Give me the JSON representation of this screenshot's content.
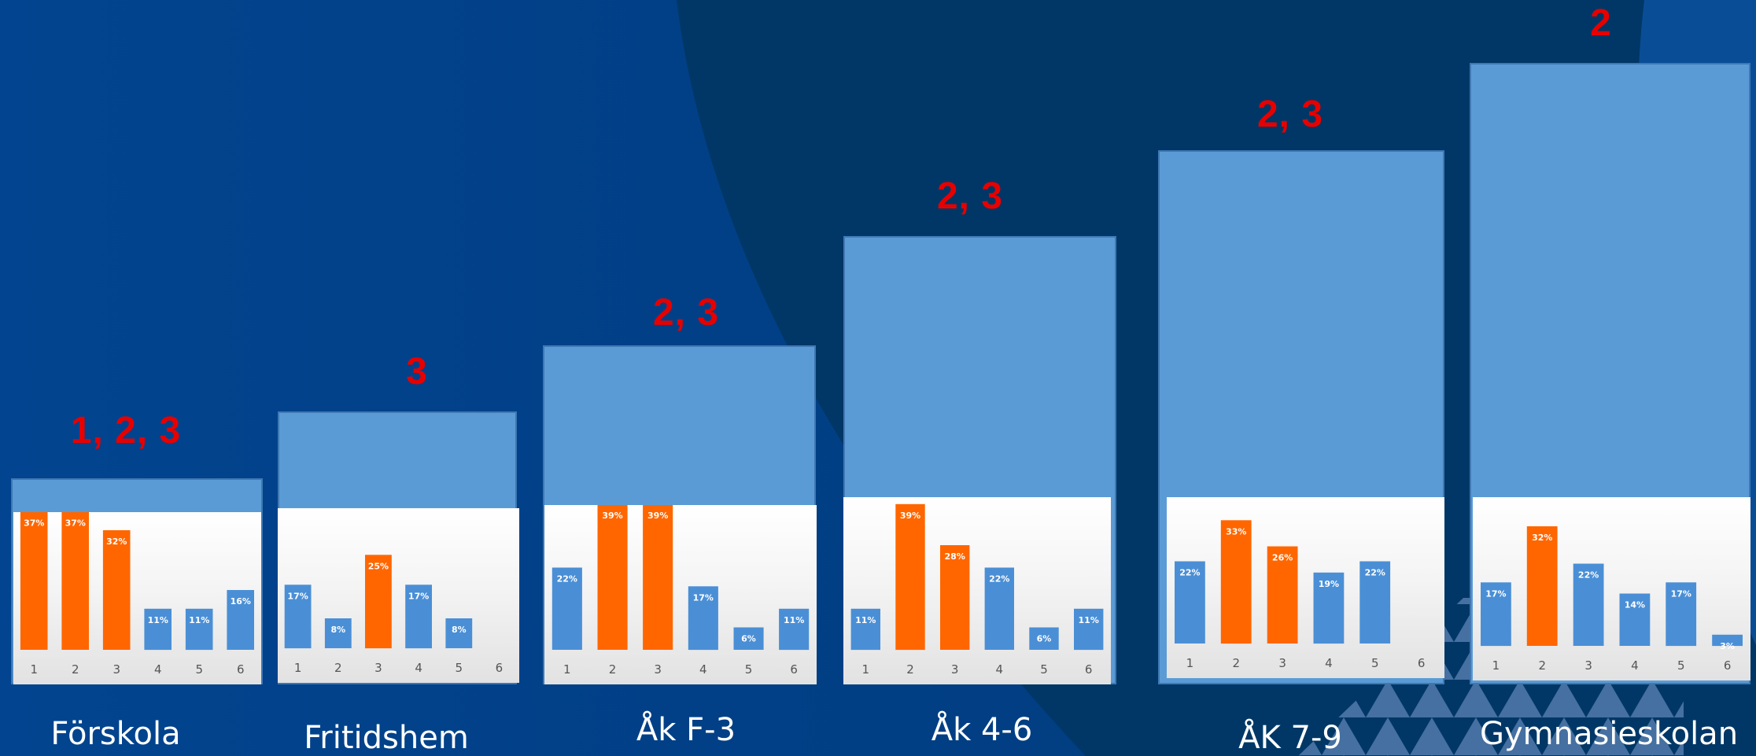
{
  "colors": {
    "highlight": "#ff6600",
    "normal": "#4a8fd6",
    "priority_text": "#e60000",
    "panel": "#5b9bd5"
  },
  "chart_data": [
    {
      "type": "bar",
      "stage": "Förskola",
      "priority": "1, 2, 3",
      "categories": [
        "1",
        "2",
        "3",
        "4",
        "5",
        "6"
      ],
      "values": [
        37,
        37,
        32,
        11,
        11,
        16
      ],
      "value_labels": [
        "37%",
        "37%",
        "32%",
        "11%",
        "11%",
        "16%"
      ],
      "highlighted": [
        1,
        2,
        3
      ]
    },
    {
      "type": "bar",
      "stage": "Fritidshem",
      "priority": "3",
      "categories": [
        "1",
        "2",
        "3",
        "4",
        "5",
        "6"
      ],
      "values": [
        17,
        8,
        25,
        17,
        8,
        0
      ],
      "value_labels": [
        "17%",
        "8%",
        "25%",
        "17%",
        "8%",
        ""
      ],
      "highlighted": [
        3
      ]
    },
    {
      "type": "bar",
      "stage": "Åk F-3",
      "priority": "2, 3",
      "categories": [
        "1",
        "2",
        "3",
        "4",
        "5",
        "6"
      ],
      "values": [
        22,
        39,
        39,
        17,
        6,
        11
      ],
      "value_labels": [
        "22%",
        "39%",
        "39%",
        "17%",
        "6%",
        "11%"
      ],
      "highlighted": [
        2,
        3
      ]
    },
    {
      "type": "bar",
      "stage": "Åk 4-6",
      "priority": "2, 3",
      "categories": [
        "1",
        "2",
        "3",
        "4",
        "5",
        "6"
      ],
      "values": [
        11,
        39,
        28,
        22,
        6,
        11
      ],
      "value_labels": [
        "11%",
        "39%",
        "28%",
        "22%",
        "6%",
        "11%"
      ],
      "highlighted": [
        2,
        3
      ]
    },
    {
      "type": "bar",
      "stage": "ÅK 7-9",
      "priority": "2, 3",
      "categories": [
        "1",
        "2",
        "3",
        "4",
        "5",
        "6"
      ],
      "values": [
        22,
        33,
        26,
        19,
        22,
        0
      ],
      "value_labels": [
        "22%",
        "33%",
        "26%",
        "19%",
        "22%",
        ""
      ],
      "highlighted": [
        2,
        3
      ]
    },
    {
      "type": "bar",
      "stage": "Gymnasieskolan",
      "priority": "2",
      "categories": [
        "1",
        "2",
        "3",
        "4",
        "5",
        "6"
      ],
      "values": [
        17,
        32,
        22,
        14,
        17,
        3
      ],
      "value_labels": [
        "17%",
        "32%",
        "22%",
        "14%",
        "17%",
        "3%"
      ],
      "highlighted": [
        2
      ]
    }
  ]
}
